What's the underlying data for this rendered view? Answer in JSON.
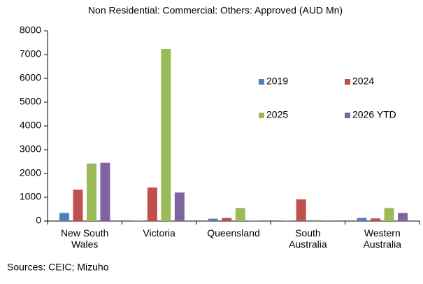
{
  "chart_data": {
    "type": "bar",
    "title": "Non Residential: Commercial: Others: Approved (AUD Mn)",
    "source": "Sources: CEIC; Mizuho",
    "categories": [
      "New South\nWales",
      "Victoria",
      "Queensland",
      "South\nAustralia",
      "Western\nAustralia"
    ],
    "series": [
      {
        "name": "2019",
        "color": "#4f81bd",
        "values": [
          340,
          20,
          100,
          10,
          130
        ]
      },
      {
        "name": "2024",
        "color": "#c0504d",
        "values": [
          1320,
          1410,
          130,
          910,
          110
        ]
      },
      {
        "name": "2025",
        "color": "#9bbb59",
        "values": [
          2420,
          7235,
          550,
          50,
          550
        ]
      },
      {
        "name": "2026 YTD",
        "color": "#8064a2",
        "values": [
          2450,
          1200,
          10,
          5,
          340
        ]
      }
    ],
    "ylim": [
      0,
      8000
    ],
    "yticks": [
      0,
      1000,
      2000,
      3000,
      4000,
      5000,
      6000,
      7000,
      8000
    ],
    "grid": false,
    "legend": "upper right"
  }
}
